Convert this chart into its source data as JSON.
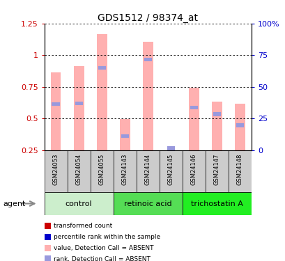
{
  "title": "GDS1512 / 98374_at",
  "samples": [
    "GSM24053",
    "GSM24054",
    "GSM24055",
    "GSM24143",
    "GSM24144",
    "GSM24145",
    "GSM24146",
    "GSM24147",
    "GSM24148"
  ],
  "pink_values": [
    0.865,
    0.915,
    1.165,
    0.495,
    1.105,
    0.0,
    0.745,
    0.635,
    0.615
  ],
  "blue_values": [
    0.615,
    0.62,
    0.9,
    0.36,
    0.965,
    0.265,
    0.585,
    0.535,
    0.445
  ],
  "ylim_left": [
    0.25,
    1.25
  ],
  "ylim_right": [
    0,
    100
  ],
  "yticks_left": [
    0.25,
    0.5,
    0.75,
    1.0,
    1.25
  ],
  "yticks_right": [
    0,
    25,
    50,
    75,
    100
  ],
  "ytick_labels_left": [
    "0.25",
    "0.5",
    "0.75",
    "1",
    "1.25"
  ],
  "ytick_labels_right": [
    "0",
    "25",
    "50",
    "75",
    "100%"
  ],
  "groups": [
    {
      "label": "control",
      "start": 0,
      "end": 3,
      "color": "#cceecc"
    },
    {
      "label": "retinoic acid",
      "start": 3,
      "end": 6,
      "color": "#55dd55"
    },
    {
      "label": "trichostatin A",
      "start": 6,
      "end": 9,
      "color": "#22ee22"
    }
  ],
  "agent_label": "agent",
  "bar_width": 0.45,
  "pink_color": "#ffb0b0",
  "blue_color": "#9999dd",
  "legend_items": [
    {
      "color": "#cc0000",
      "label": "transformed count"
    },
    {
      "color": "#0000cc",
      "label": "percentile rank within the sample"
    },
    {
      "color": "#ffb0b0",
      "label": "value, Detection Call = ABSENT"
    },
    {
      "color": "#9999dd",
      "label": "rank, Detection Call = ABSENT"
    }
  ],
  "grid_color": "black",
  "plot_bg": "white",
  "left_tick_color": "#cc0000",
  "right_tick_color": "#0000cc",
  "sample_bg": "#cccccc",
  "fig_width": 4.1,
  "fig_height": 3.75,
  "dpi": 100
}
